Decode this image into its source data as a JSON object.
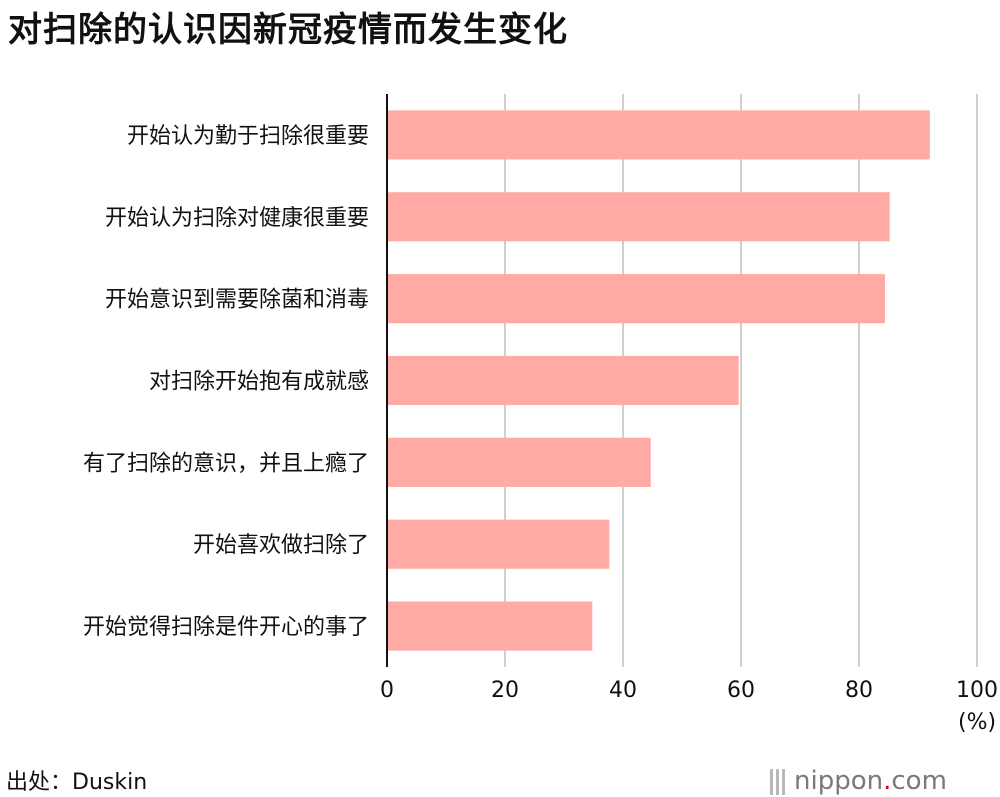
{
  "title": "对扫除的认识因新冠疫情而发生变化",
  "unit_label": "(%)",
  "source": "出处：Duskin",
  "logo": {
    "text_main": "nippon",
    "text_dot": ".",
    "text_tld": "com"
  },
  "colors": {
    "bar": "#ffaaa5",
    "grid": "#cfcfcf",
    "axis": "#111111"
  },
  "chart_data": {
    "type": "bar",
    "orientation": "horizontal",
    "categories": [
      "开始认为勤于扫除很重要",
      "开始认为扫除对健康很重要",
      "开始意识到需要除菌和消毒",
      "对扫除开始抱有成就感",
      "有了扫除的意识，并且上瘾了",
      "开始喜欢做扫除了",
      "开始觉得扫除是件开心的事了"
    ],
    "values": [
      92.0,
      85.2,
      84.4,
      59.6,
      44.7,
      37.7,
      34.8
    ],
    "xlim": [
      0,
      100
    ],
    "xticks": [
      "0",
      "20",
      "40",
      "60",
      "80",
      "100"
    ],
    "grid": true
  }
}
